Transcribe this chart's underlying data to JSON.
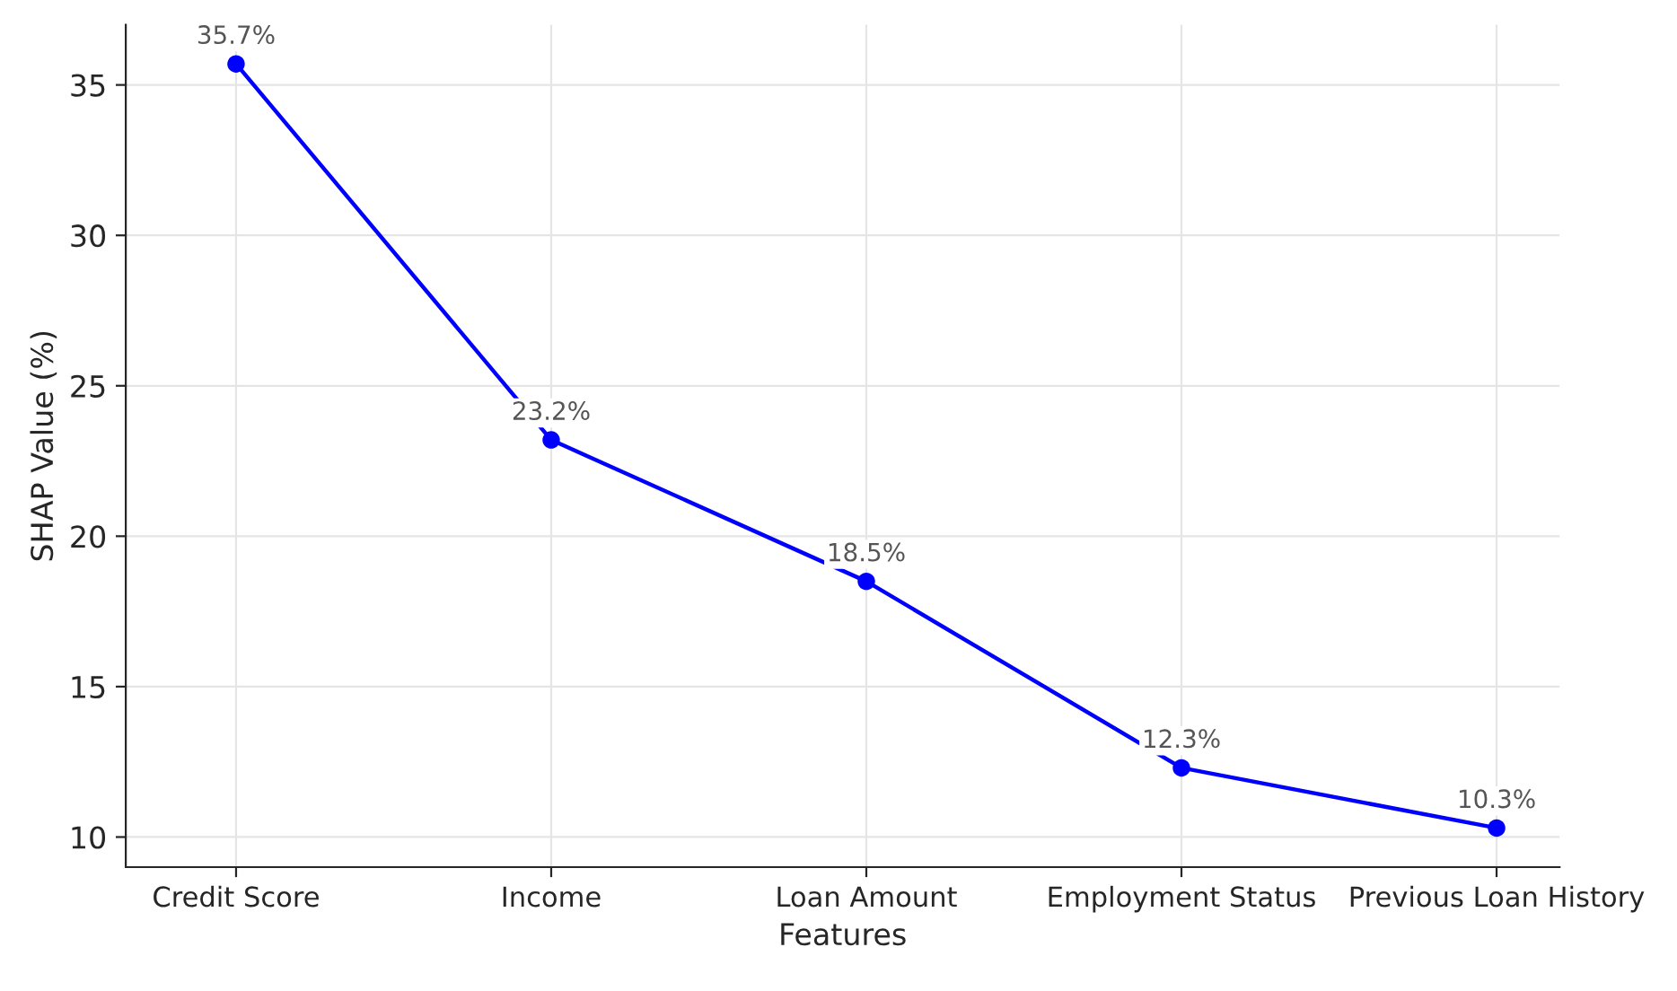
{
  "chart_data": {
    "type": "line",
    "xlabel": "Features",
    "ylabel": "SHAP Value (%)",
    "categories": [
      "Credit Score",
      "Income",
      "Loan Amount",
      "Employment Status",
      "Previous Loan History"
    ],
    "series": [
      {
        "color": "#0000ff",
        "values": [
          35.7,
          23.2,
          18.5,
          12.3,
          10.3
        ],
        "value_labels": [
          "35.7%",
          "23.2%",
          "18.5%",
          "12.3%",
          "10.3%"
        ]
      }
    ],
    "ylim": [
      9,
      37
    ],
    "yticks": [
      10,
      15,
      20,
      25,
      30,
      35
    ],
    "grid": true,
    "marker": "circle",
    "line_style": "solid"
  }
}
